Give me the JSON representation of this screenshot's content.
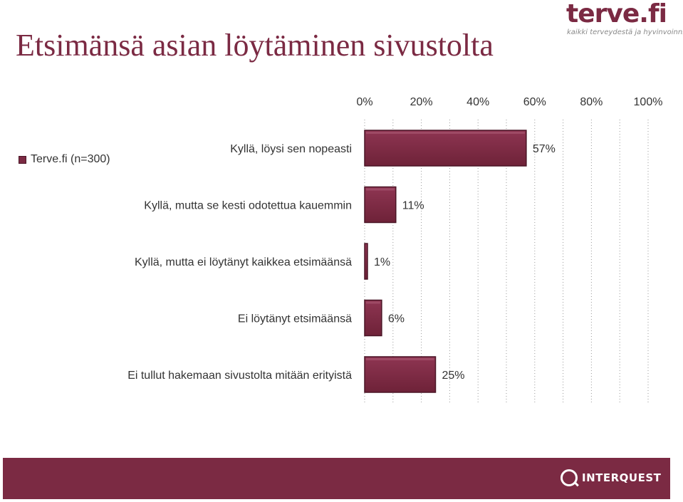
{
  "page": {
    "title": "Etsimänsä asian löytäminen sivustolta"
  },
  "brand": {
    "logo_text": "terve.fi",
    "tagline": "kaikki terveydestä ja hyvinvoinnista.",
    "footer_logo_text": "INTERQUEST",
    "accent_color": "#7b2a43",
    "footer_color": "#7b2a43"
  },
  "chart_data": {
    "type": "bar",
    "orientation": "horizontal",
    "categories": [
      "Kyllä, löysi sen nopeasti",
      "Kyllä, mutta se kesti odotettua kauemmin",
      "Kyllä, mutta ei löytänyt kaikkea etsimäänsä",
      "Ei löytänyt etsimäänsä",
      "Ei tullut hakemaan sivustolta mitään erityistä"
    ],
    "series": [
      {
        "name": "Terve.fi (n=300)",
        "values": [
          57,
          11,
          1,
          6,
          25
        ],
        "value_labels": [
          "57%",
          "11%",
          "1%",
          "6%",
          "25%"
        ],
        "color": "#7b2a43"
      }
    ],
    "xlim": [
      0,
      100
    ],
    "x_ticks": [
      "0%",
      "20%",
      "40%",
      "60%",
      "80%",
      "100%"
    ],
    "x_axis_position": "top",
    "grid": "vertical dotted",
    "legend_position": "left"
  }
}
